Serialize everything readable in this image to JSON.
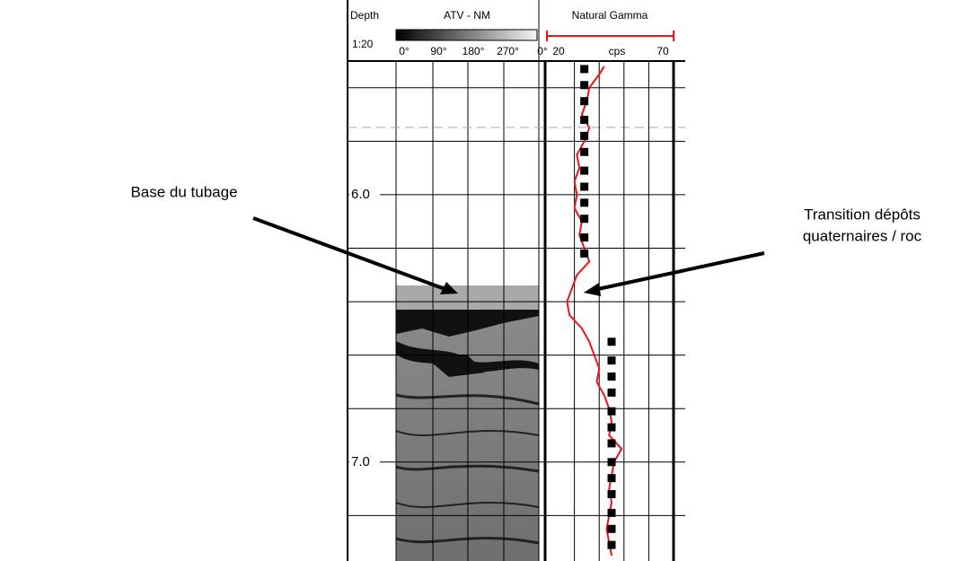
{
  "chart_data": {
    "type": "line",
    "header": {
      "depth": "Depth",
      "scale": "1:20",
      "image_track": "ATV - NM",
      "azimuths": [
        "0°",
        "90°",
        "180°",
        "270°",
        "0°"
      ],
      "gamma_track": "Natural Gamma",
      "unit": "cps"
    },
    "color": "#e8151b",
    "y": [
      5.52,
      5.55,
      5.6,
      5.65,
      5.7,
      5.75,
      5.8,
      5.85,
      5.9,
      5.95,
      6.0,
      6.05,
      6.1,
      6.15,
      6.2,
      6.25,
      6.3,
      6.35,
      6.4,
      6.45,
      6.5,
      6.55,
      6.6,
      6.65,
      6.7,
      6.75,
      6.8,
      6.85,
      6.9,
      6.95,
      7.0,
      7.05,
      7.1,
      7.15,
      7.2,
      7.25,
      7.3,
      7.35
    ],
    "values": [
      42,
      40,
      36,
      35,
      33,
      36,
      34,
      31,
      32,
      30,
      31,
      30,
      33,
      32,
      34,
      36,
      31,
      29,
      27,
      28,
      33,
      36,
      38,
      40,
      39,
      42,
      44,
      45,
      44,
      49,
      46,
      45,
      44,
      45,
      44,
      43,
      44,
      45
    ],
    "markers": {
      "color": "#000000",
      "y": [
        5.53,
        5.59,
        5.65,
        5.72,
        5.78,
        5.84,
        5.91,
        5.97,
        6.03,
        6.09,
        6.16,
        6.22,
        6.55,
        6.62,
        6.68,
        6.74,
        6.81,
        6.87,
        6.93,
        7.0,
        7.06,
        7.12,
        7.19,
        7.25,
        7.31
      ],
      "values": [
        34,
        34,
        34,
        34,
        34,
        34,
        34,
        34,
        34,
        34,
        34,
        34,
        45,
        45,
        45,
        45,
        45,
        45,
        45,
        45,
        45,
        45,
        45,
        45,
        45
      ]
    },
    "ylim": [
      5.5,
      7.37
    ],
    "yticks": [
      {
        "value": 6,
        "label": "6.0"
      },
      {
        "value": 7,
        "label": "7.0"
      }
    ],
    "minor_yticks": [
      5.6,
      5.8,
      6.2,
      6.4,
      6.6,
      6.8,
      7.2
    ],
    "xlim": [
      20,
      70
    ],
    "xticks": [
      20,
      70
    ],
    "minor_xticks": [
      30,
      40,
      50,
      60
    ],
    "annotations": [
      {
        "lines": [
          "Base du tubage"
        ]
      },
      {
        "lines": [
          "Transition dépôts",
          "quaternaires / roc"
        ]
      }
    ]
  }
}
